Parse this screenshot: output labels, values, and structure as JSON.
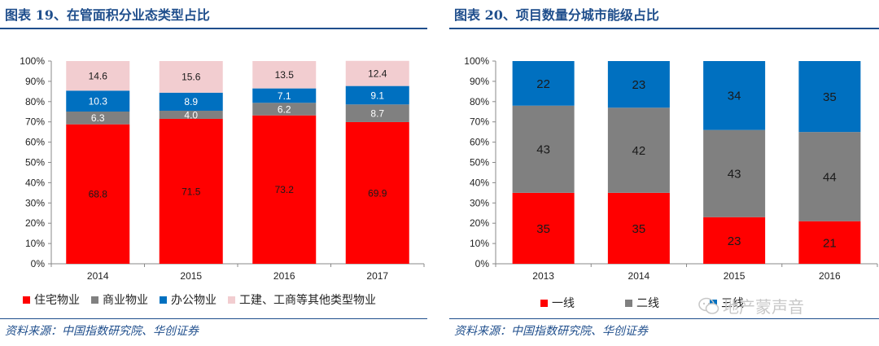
{
  "colors": {
    "brand_blue": "#1f4e8c",
    "residential": "#ff0000",
    "commercial": "#808080",
    "office": "#0070c0",
    "industrial_other": "#f2cdd0",
    "tier1": "#ff0000",
    "tier2": "#808080",
    "tier3": "#0070c0"
  },
  "left_panel": {
    "title": "图表 19、在管面积分业态类型占比",
    "source": "资料来源：中国指数研究院、华创证券"
  },
  "right_panel": {
    "title": "图表 20、项目数量分城市能级占比",
    "source": "资料来源：中国指数研究院、华创证券"
  },
  "watermark": {
    "icon": "wechat-icon",
    "text": "地产蒙声音"
  },
  "chart_data": [
    {
      "type": "bar",
      "stacked": true,
      "title": "图表 19、在管面积分业态类型占比",
      "categories": [
        "2014",
        "2015",
        "2016",
        "2017"
      ],
      "y_ticks": [
        "0%",
        "10%",
        "20%",
        "30%",
        "40%",
        "50%",
        "60%",
        "70%",
        "80%",
        "90%",
        "100%"
      ],
      "ylim": [
        0,
        100
      ],
      "legend_position": "bottom",
      "series": [
        {
          "name": "住宅物业",
          "color": "#ff0000",
          "label_color": "#1a1a1a",
          "values": [
            68.8,
            71.5,
            73.2,
            69.9
          ],
          "labels": [
            "68.8",
            "71.5",
            "73.2",
            "69.9"
          ]
        },
        {
          "name": "商业物业",
          "color": "#808080",
          "label_color": "#ffffff",
          "values": [
            6.3,
            4.0,
            6.2,
            8.7
          ],
          "labels": [
            "6.3",
            "4.0",
            "6.2",
            "8.7"
          ]
        },
        {
          "name": "办公物业",
          "color": "#0070c0",
          "label_color": "#ffffff",
          "values": [
            10.3,
            8.9,
            7.1,
            9.1
          ],
          "labels": [
            "10.3",
            "8.9",
            "7.1",
            "9.1"
          ]
        },
        {
          "name": "工建、工商等其他类型物业",
          "color": "#f2cdd0",
          "label_color": "#1a1a1a",
          "values": [
            14.6,
            15.6,
            13.5,
            12.4
          ],
          "labels": [
            "14.6",
            "15.6",
            "13.5",
            "12.4"
          ]
        }
      ]
    },
    {
      "type": "bar",
      "stacked": true,
      "title": "图表 20、项目数量分城市能级占比",
      "categories": [
        "2013",
        "2014",
        "2015",
        "2016"
      ],
      "y_ticks": [
        "0%",
        "10%",
        "20%",
        "30%",
        "40%",
        "50%",
        "60%",
        "70%",
        "80%",
        "90%",
        "100%"
      ],
      "ylim": [
        0,
        100
      ],
      "legend_position": "bottom",
      "series": [
        {
          "name": "一线",
          "color": "#ff0000",
          "label_color": "#1a1a1a",
          "values": [
            35,
            35,
            23,
            21
          ],
          "labels": [
            "35",
            "35",
            "23",
            "21"
          ]
        },
        {
          "name": "二线",
          "color": "#808080",
          "label_color": "#1a1a1a",
          "values": [
            43,
            42,
            43,
            44
          ],
          "labels": [
            "43",
            "42",
            "43",
            "44"
          ]
        },
        {
          "name": "三线",
          "color": "#0070c0",
          "label_color": "#1a1a1a",
          "values": [
            22,
            23,
            34,
            35
          ],
          "labels": [
            "22",
            "23",
            "34",
            "35"
          ]
        }
      ]
    }
  ]
}
